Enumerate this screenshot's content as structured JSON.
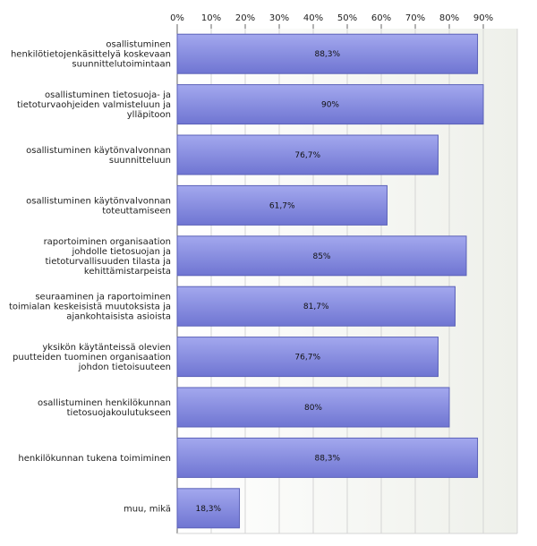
{
  "chart_data": {
    "type": "bar",
    "orientation": "horizontal",
    "categories": [
      [
        "osallistuminen",
        "henkilötietojenkäsittelyä koskevaan",
        "suunnittelutoimintaan"
      ],
      [
        "osallistuminen tietosuoja- ja",
        "tietoturvaohjeiden valmisteluun ja",
        "ylläpitoon"
      ],
      [
        "osallistuminen käytönvalvonnan",
        "suunnitteluun"
      ],
      [
        "osallistuminen käytönvalvonnan",
        "toteuttamiseen"
      ],
      [
        "raportoiminen organisaation",
        "johdolle tietosuojan ja",
        "tietoturvallisuuden tilasta ja",
        "kehittämistarpeista"
      ],
      [
        "seuraaminen ja raportoiminen",
        "toimialan keskeisistä muutoksista ja",
        "ajankohtaisista asioista"
      ],
      [
        "yksikön käytänteissä olevien",
        "puutteiden tuominen organisaation",
        "johdon tietoisuuteen"
      ],
      [
        "osallistuminen henkilökunnan",
        "tietosuojakoulutukseen"
      ],
      [
        "henkilökunnan tukena toimiminen"
      ],
      [
        "muu, mikä"
      ]
    ],
    "values": [
      88.3,
      90,
      76.7,
      61.7,
      85,
      81.7,
      76.7,
      80,
      88.3,
      18.3
    ],
    "value_labels": [
      "88,3%",
      "90%",
      "76,7%",
      "61,7%",
      "85%",
      "81,7%",
      "76,7%",
      "80%",
      "88,3%",
      "18,3%"
    ],
    "x_ticks": [
      "0%",
      "10%",
      "20%",
      "30%",
      "40%",
      "50%",
      "60%",
      "70%",
      "80%",
      "90%"
    ],
    "xlim": [
      0,
      100
    ],
    "axis_position": "top",
    "grid": true,
    "title": "",
    "xlabel": "",
    "ylabel": "",
    "colors": {
      "bar_light": "#a3a8ee",
      "bar_dark": "#6f75d2",
      "bar_edge": "#5b61b8",
      "plot_bg_left": "#ffffff",
      "plot_bg_right": "#eef0ea",
      "grid": "#d4d4d4",
      "axis": "#666666"
    }
  }
}
